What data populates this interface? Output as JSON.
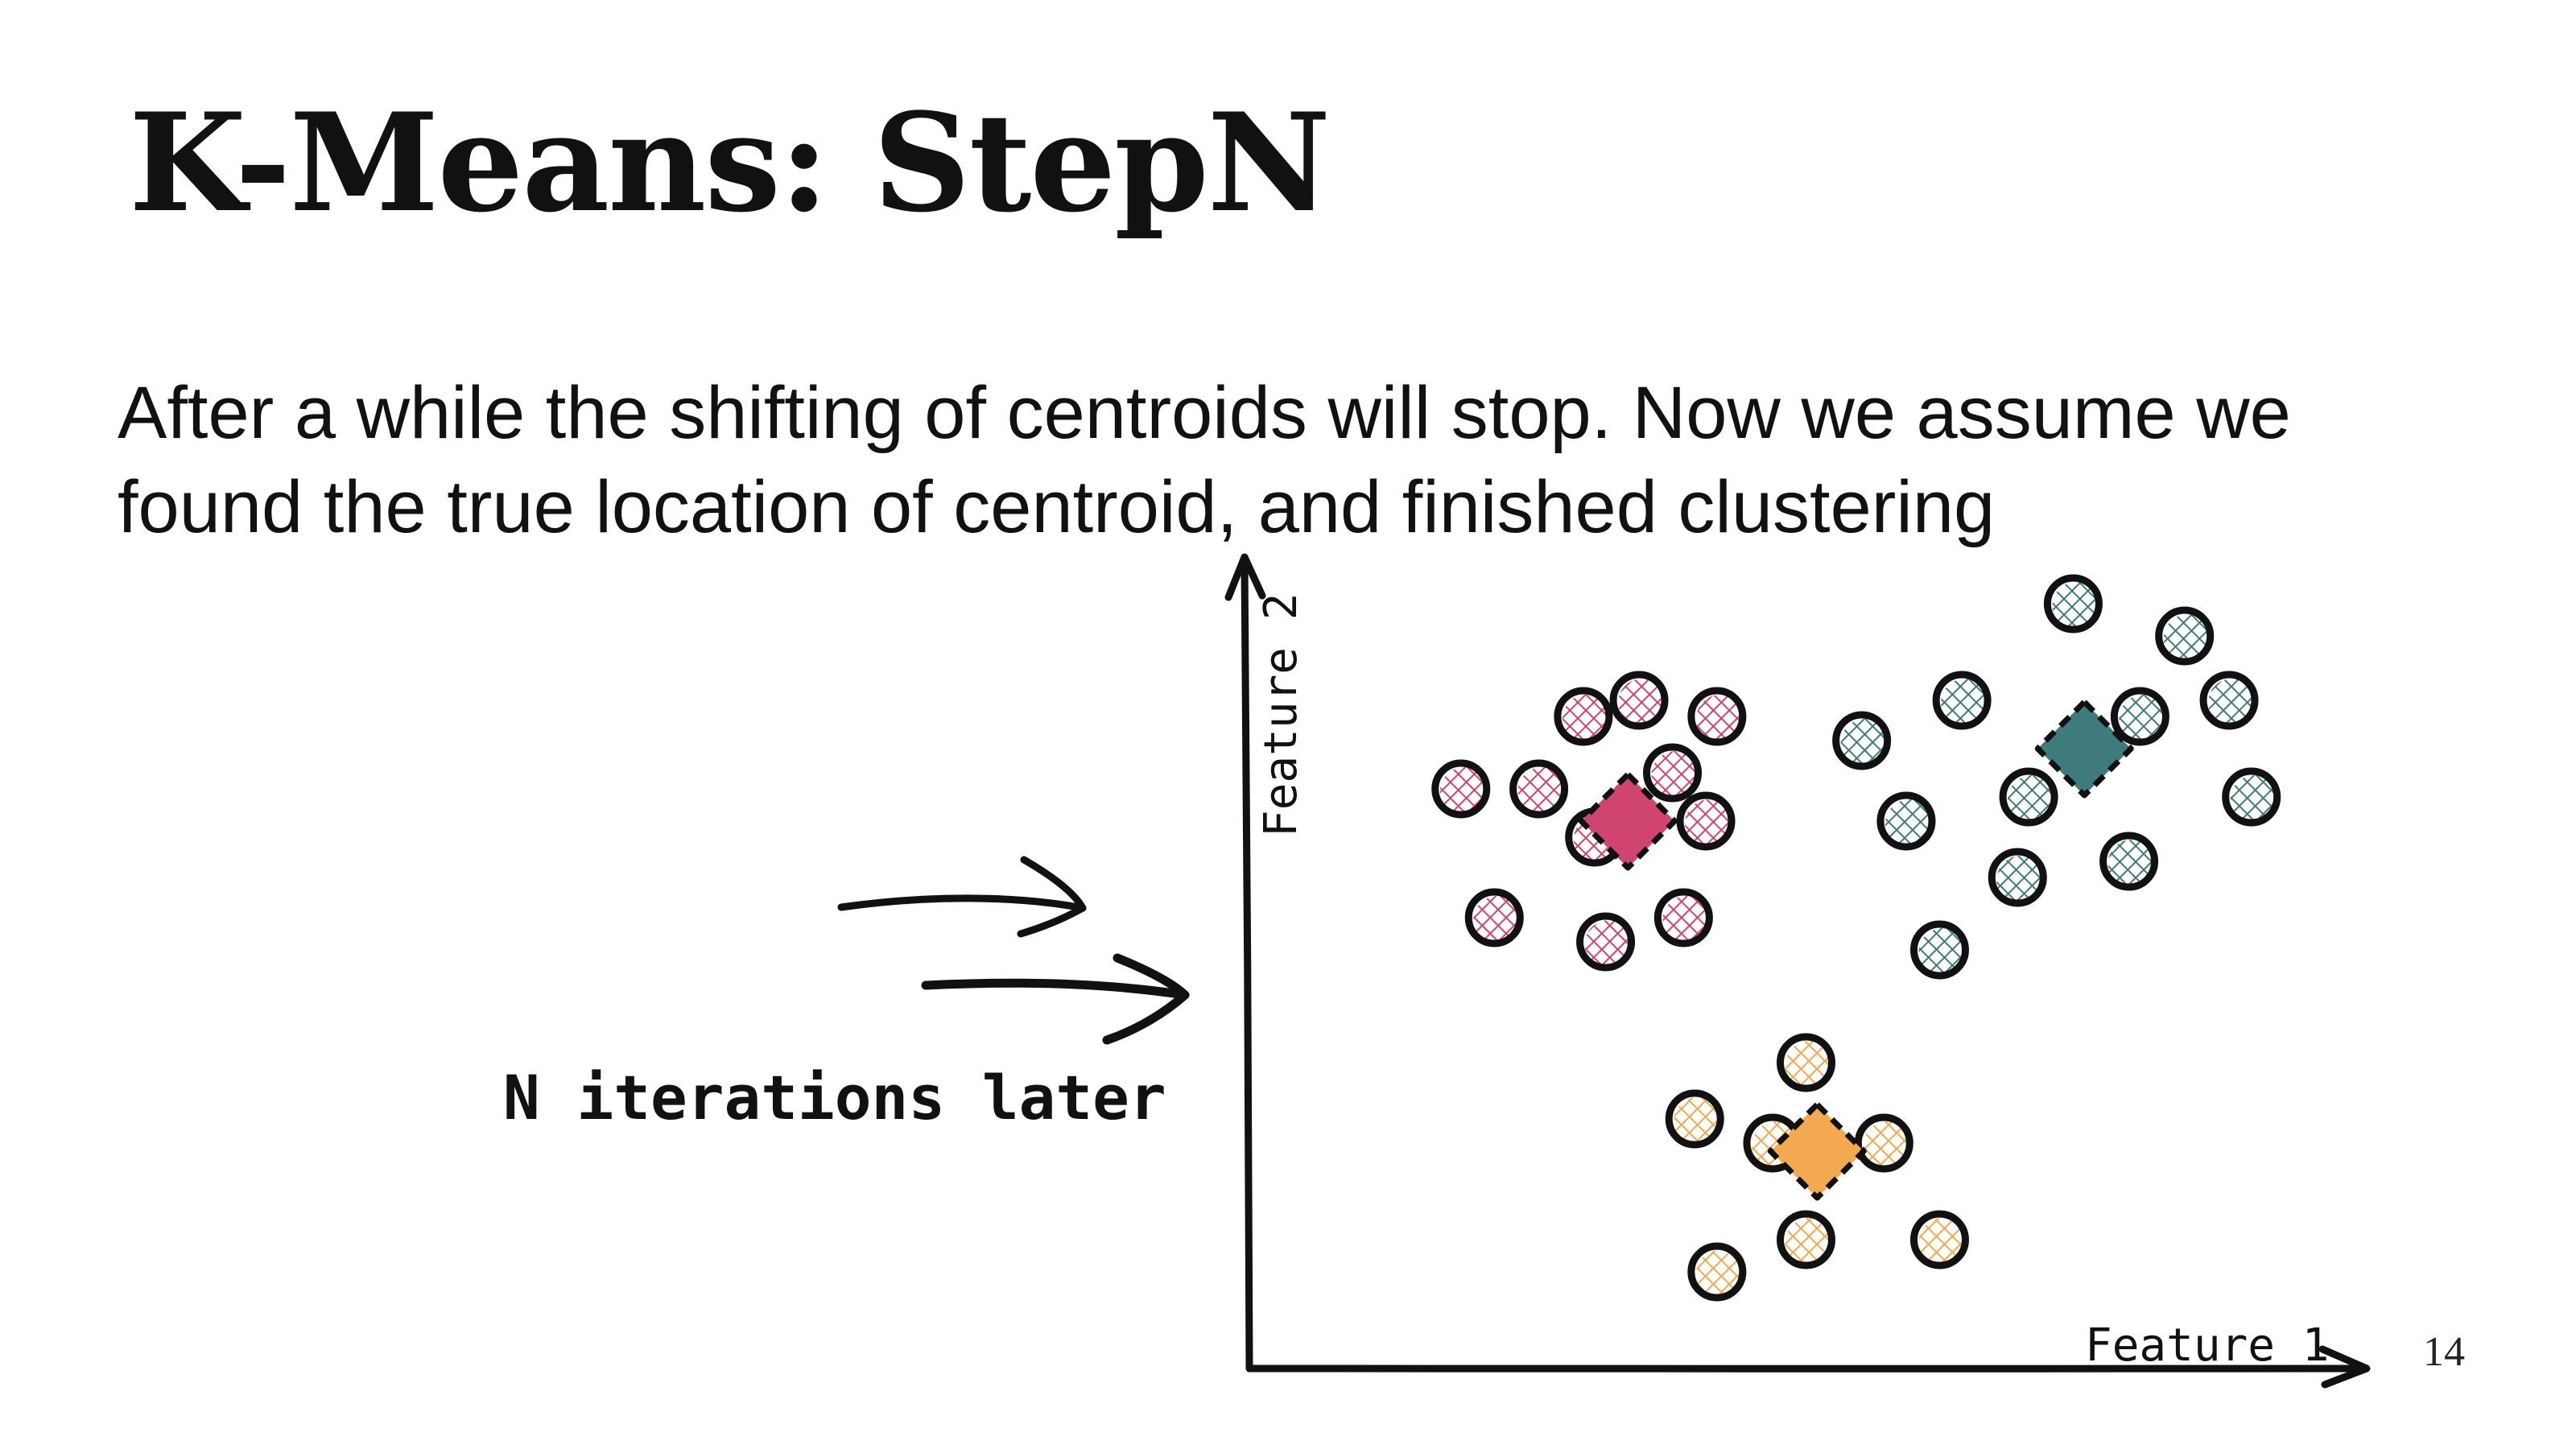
{
  "slide": {
    "title": "K-Means: StepN",
    "body": "After a while the shifting of centroids will stop. Now we assume we found the true location of centroid, and finished clustering",
    "page_number": "14"
  },
  "diagram": {
    "x_axis_label": "Feature 1",
    "y_axis_label": "Feature 2",
    "annotation": "N iterations later",
    "colors": {
      "pink": "#d0456f",
      "teal": "#3f7a7c",
      "orange": "#f2a950",
      "ink": "#111111"
    }
  },
  "chart_data": {
    "type": "scatter",
    "title": "",
    "xlabel": "Feature 1",
    "ylabel": "Feature 2",
    "xlim": [
      0,
      1
    ],
    "ylim": [
      0,
      1
    ],
    "grid": false,
    "series": [
      {
        "color": "#d0456f",
        "centroid": [
          0.34,
          0.68
        ],
        "points": [
          [
            0.3,
            0.81
          ],
          [
            0.35,
            0.83
          ],
          [
            0.42,
            0.81
          ],
          [
            0.19,
            0.72
          ],
          [
            0.26,
            0.72
          ],
          [
            0.38,
            0.74
          ],
          [
            0.41,
            0.68
          ],
          [
            0.31,
            0.66
          ],
          [
            0.22,
            0.56
          ],
          [
            0.32,
            0.53
          ],
          [
            0.39,
            0.56
          ]
        ]
      },
      {
        "color": "#3f7a7c",
        "centroid": [
          0.75,
          0.77
        ],
        "points": [
          [
            0.74,
            0.95
          ],
          [
            0.84,
            0.91
          ],
          [
            0.64,
            0.83
          ],
          [
            0.8,
            0.81
          ],
          [
            0.88,
            0.83
          ],
          [
            0.55,
            0.78
          ],
          [
            0.7,
            0.71
          ],
          [
            0.59,
            0.68
          ],
          [
            0.9,
            0.71
          ],
          [
            0.69,
            0.61
          ],
          [
            0.79,
            0.63
          ],
          [
            0.62,
            0.52
          ]
        ]
      },
      {
        "color": "#f2a950",
        "centroid": [
          0.51,
          0.27
        ],
        "points": [
          [
            0.5,
            0.38
          ],
          [
            0.4,
            0.31
          ],
          [
            0.47,
            0.28
          ],
          [
            0.57,
            0.28
          ],
          [
            0.5,
            0.16
          ],
          [
            0.62,
            0.16
          ],
          [
            0.42,
            0.12
          ]
        ]
      }
    ]
  }
}
